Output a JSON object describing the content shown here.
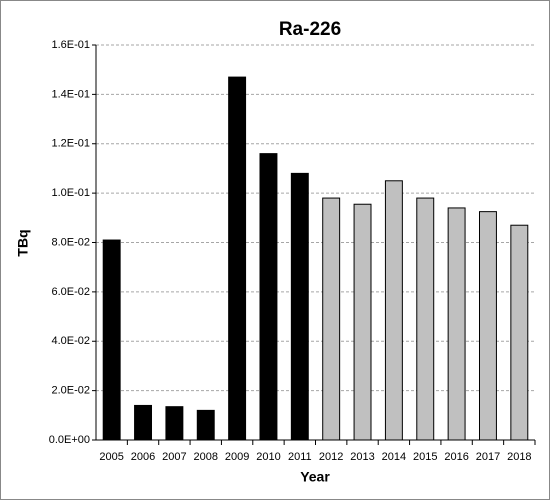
{
  "chart_data": {
    "type": "bar",
    "title": "Ra-226",
    "x_label": "Year",
    "y_label": "TBq",
    "categories": [
      "2005",
      "2006",
      "2007",
      "2008",
      "2009",
      "2010",
      "2011",
      "2012",
      "2013",
      "2014",
      "2015",
      "2016",
      "2017",
      "2018"
    ],
    "values": [
      0.081,
      0.014,
      0.0135,
      0.012,
      0.147,
      0.116,
      0.108,
      0.098,
      0.0955,
      0.105,
      0.098,
      0.094,
      0.0925,
      0.087
    ],
    "colors": [
      "#000000",
      "#000000",
      "#000000",
      "#000000",
      "#000000",
      "#000000",
      "#000000",
      "#c0c0c0",
      "#c0c0c0",
      "#c0c0c0",
      "#c0c0c0",
      "#c0c0c0",
      "#c0c0c0",
      "#c0c0c0"
    ],
    "edgecolor": "#000000",
    "ylim": [
      0,
      0.16
    ],
    "yticks": [
      {
        "value": 0,
        "label": "0.0E+00"
      },
      {
        "value": 0.02,
        "label": "2.0E-02"
      },
      {
        "value": 0.04,
        "label": "4.0E-02"
      },
      {
        "value": 0.06,
        "label": "6.0E-02"
      },
      {
        "value": 0.08,
        "label": "8.0E-02"
      },
      {
        "value": 0.1,
        "label": "1.0E-01"
      },
      {
        "value": 0.12,
        "label": "1.2E-01"
      },
      {
        "value": 0.14,
        "label": "1.4E-01"
      },
      {
        "value": 0.16,
        "label": "1.6E-01"
      }
    ],
    "grid": true
  }
}
